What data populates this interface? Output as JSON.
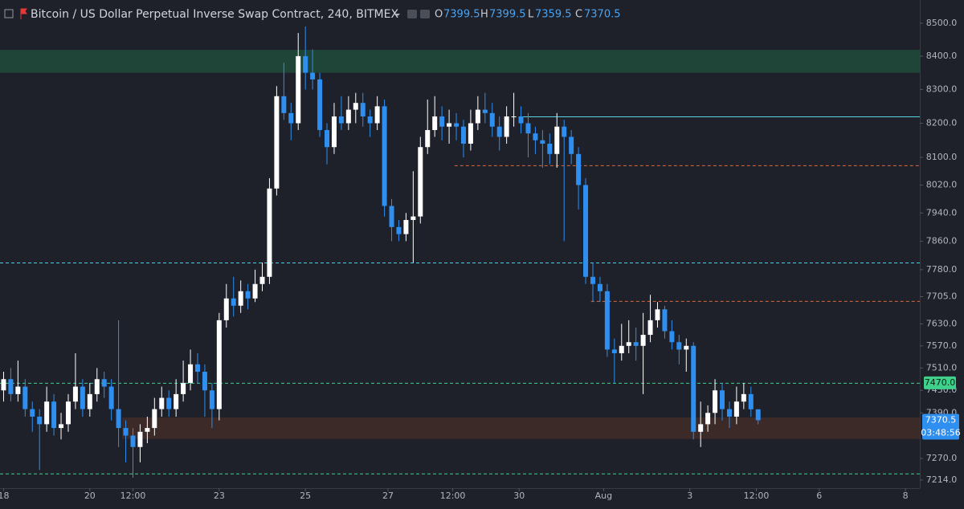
{
  "chart_data": {
    "type": "candlestick",
    "title": "Bitcoin / US Dollar Perpetual Inverse Swap Contract, 240, BITMEX",
    "ohlc_labels": [
      "O",
      "H",
      "L",
      "C"
    ],
    "countdown": "03:48:56",
    "log_scale": true,
    "up_color": "#ffffff",
    "down_color": "#2e8ff0",
    "xlim": [
      -2,
      510
    ],
    "xticks": [
      {
        "value": 0,
        "label": "18"
      },
      {
        "value": 48,
        "label": "20"
      },
      {
        "value": 72,
        "label": "12:00"
      },
      {
        "value": 120,
        "label": "23"
      },
      {
        "value": 168,
        "label": "25"
      },
      {
        "value": 214,
        "label": "27"
      },
      {
        "value": 250,
        "label": "12:00"
      },
      {
        "value": 287,
        "label": "30"
      },
      {
        "value": 334,
        "label": "Aug"
      },
      {
        "value": 382,
        "label": "3"
      },
      {
        "value": 419,
        "label": "12:00"
      },
      {
        "value": 454,
        "label": "6"
      },
      {
        "value": 502,
        "label": "8"
      }
    ],
    "ylim": [
      7193,
      8571
    ],
    "yticks": [
      {
        "value": 8500,
        "label": "8500.0"
      },
      {
        "value": 8400,
        "label": "8400.0"
      },
      {
        "value": 8300,
        "label": "8300.0"
      },
      {
        "value": 8200,
        "label": "8200.0"
      },
      {
        "value": 8100,
        "label": "8100.0"
      },
      {
        "value": 8020,
        "label": "8020.0"
      },
      {
        "value": 7940,
        "label": "7940.0"
      },
      {
        "value": 7860,
        "label": "7860.0"
      },
      {
        "value": 7780,
        "label": "7780.0"
      },
      {
        "value": 7705,
        "label": "7705.0"
      },
      {
        "value": 7630,
        "label": "7630.0"
      },
      {
        "value": 7570,
        "label": "7570.0"
      },
      {
        "value": 7510,
        "label": "7510.0"
      },
      {
        "value": 7450,
        "label": "7450.0"
      },
      {
        "value": 7390,
        "label": "7390.0"
      },
      {
        "value": 7270,
        "label": "7270.0"
      },
      {
        "value": 7214,
        "label": "7214.0"
      }
    ],
    "zones": [
      {
        "from": 8350,
        "to": 8419,
        "color": "#1f4538"
      },
      {
        "from": 7321,
        "to": 7378,
        "color": "#3b2a28",
        "start": 66
      }
    ],
    "levels": [
      {
        "value": 8220,
        "color": "#5fd3e6",
        "dashed": false,
        "start": 287
      },
      {
        "value": 8077,
        "color": "#d9693a",
        "dashed": true,
        "start": 251
      },
      {
        "value": 7800,
        "color": "#4dd0e1",
        "dashed": true
      },
      {
        "value": 7693,
        "color": "#d9693a",
        "dashed": true,
        "start": 327
      },
      {
        "value": 7470,
        "color": "#3fd08c",
        "dashed": true,
        "label": "7470.0"
      },
      {
        "value": 7231,
        "color": "#3fd08c",
        "dashed": true
      }
    ],
    "x": [
      0,
      4,
      8,
      12,
      16,
      20,
      24,
      28,
      32,
      36,
      40,
      44,
      48,
      52,
      56,
      60,
      64,
      68,
      72,
      76,
      80,
      84,
      88,
      92,
      96,
      100,
      104,
      108,
      112,
      116,
      120,
      124,
      128,
      132,
      136,
      140,
      144,
      148,
      152,
      156,
      160,
      164,
      168,
      172,
      176,
      180,
      184,
      188,
      192,
      196,
      200,
      204,
      208,
      212,
      216,
      220,
      224,
      228,
      232,
      236,
      240,
      244,
      248,
      252,
      256,
      260,
      264,
      268,
      272,
      276,
      280,
      284,
      288,
      292,
      296,
      300,
      304,
      308,
      312,
      316,
      320,
      324,
      328,
      332,
      336,
      340,
      344,
      348,
      352,
      356,
      360,
      364,
      368,
      372,
      376,
      380,
      384,
      388,
      392,
      396,
      400,
      404,
      408,
      412,
      416,
      420
    ],
    "open": [
      7450,
      7480,
      7440,
      7460,
      7400,
      7380,
      7360,
      7420,
      7350,
      7360,
      7420,
      7460,
      7400,
      7440,
      7480,
      7460,
      7400,
      7350,
      7330,
      7300,
      7340,
      7350,
      7400,
      7430,
      7400,
      7440,
      7470,
      7520,
      7500,
      7450,
      7400,
      7640,
      7700,
      7680,
      7720,
      7700,
      7740,
      7760,
      8010,
      8280,
      8230,
      8200,
      8400,
      8350,
      8330,
      8180,
      8130,
      8220,
      8200,
      8240,
      8260,
      8220,
      8200,
      8250,
      7960,
      7900,
      7880,
      7920,
      7930,
      8130,
      8180,
      8220,
      8190,
      8200,
      8190,
      8140,
      8200,
      8240,
      8230,
      8190,
      8160,
      8220,
      8220,
      8200,
      8170,
      8150,
      8140,
      8110,
      8190,
      8160,
      8110,
      8020,
      7760,
      7740,
      7720,
      7560,
      7550,
      7570,
      7580,
      7570,
      7600,
      7640,
      7670,
      7610,
      7580,
      7560,
      7570,
      7340,
      7360,
      7390,
      7450,
      7400,
      7380,
      7420,
      7440,
      7399.5
    ],
    "high": [
      7500,
      7510,
      7530,
      7480,
      7420,
      7400,
      7460,
      7440,
      7390,
      7440,
      7550,
      7480,
      7470,
      7510,
      7500,
      7480,
      7640,
      7370,
      7350,
      7360,
      7380,
      7430,
      7460,
      7450,
      7480,
      7530,
      7560,
      7550,
      7520,
      7470,
      7660,
      7740,
      7760,
      7750,
      7740,
      7780,
      7800,
      8040,
      8310,
      8380,
      8260,
      8470,
      8490,
      8420,
      8350,
      8200,
      8260,
      8280,
      8280,
      8290,
      8290,
      8240,
      8280,
      8270,
      7980,
      7920,
      7940,
      8060,
      8160,
      8270,
      8280,
      8250,
      8240,
      8230,
      8210,
      8240,
      8280,
      8290,
      8260,
      8220,
      8250,
      8290,
      8250,
      8230,
      8190,
      8180,
      8170,
      8230,
      8210,
      8180,
      8130,
      8040,
      7800,
      7760,
      7740,
      7590,
      7630,
      7640,
      7620,
      7660,
      7710,
      7690,
      7680,
      7640,
      7600,
      7590,
      7580,
      7420,
      7410,
      7480,
      7470,
      7420,
      7460,
      7470,
      7460,
      7399.5
    ],
    "low": [
      7420,
      7420,
      7420,
      7380,
      7340,
      7240,
      7340,
      7330,
      7320,
      7340,
      7400,
      7380,
      7380,
      7420,
      7430,
      7370,
      7300,
      7260,
      7220,
      7260,
      7310,
      7330,
      7380,
      7380,
      7380,
      7420,
      7450,
      7470,
      7380,
      7350,
      7370,
      7620,
      7650,
      7660,
      7670,
      7690,
      7720,
      7740,
      7990,
      8210,
      8150,
      8180,
      8300,
      8300,
      8160,
      8080,
      8110,
      8180,
      8180,
      8200,
      8190,
      8160,
      8180,
      7930,
      7860,
      7860,
      7860,
      7800,
      7910,
      8110,
      8160,
      8150,
      8140,
      8150,
      8100,
      8120,
      8180,
      8200,
      8160,
      8120,
      8140,
      8190,
      8170,
      8100,
      8110,
      8070,
      8080,
      8070,
      7860,
      8080,
      7950,
      7740,
      7690,
      7690,
      7540,
      7470,
      7530,
      7550,
      7530,
      7440,
      7580,
      7620,
      7590,
      7560,
      7520,
      7500,
      7320,
      7300,
      7340,
      7360,
      7370,
      7350,
      7360,
      7400,
      7380,
      7359.5
    ],
    "close": [
      7480,
      7440,
      7460,
      7400,
      7380,
      7360,
      7420,
      7350,
      7360,
      7420,
      7460,
      7400,
      7440,
      7480,
      7460,
      7400,
      7350,
      7330,
      7300,
      7340,
      7350,
      7400,
      7430,
      7400,
      7440,
      7470,
      7520,
      7500,
      7450,
      7400,
      7640,
      7700,
      7680,
      7720,
      7700,
      7740,
      7760,
      8010,
      8280,
      8230,
      8200,
      8400,
      8350,
      8330,
      8180,
      8130,
      8220,
      8200,
      8240,
      8260,
      8220,
      8200,
      8250,
      7960,
      7900,
      7880,
      7920,
      7930,
      8130,
      8180,
      8220,
      8190,
      8200,
      8190,
      8140,
      8200,
      8240,
      8230,
      8190,
      8160,
      8220,
      8220,
      8200,
      8170,
      8150,
      8140,
      8110,
      8190,
      8160,
      8110,
      8020,
      7760,
      7740,
      7720,
      7560,
      7550,
      7570,
      7580,
      7570,
      7600,
      7640,
      7670,
      7610,
      7580,
      7560,
      7570,
      7340,
      7360,
      7390,
      7450,
      7400,
      7380,
      7420,
      7440,
      7399.5,
      7370.5
    ]
  }
}
